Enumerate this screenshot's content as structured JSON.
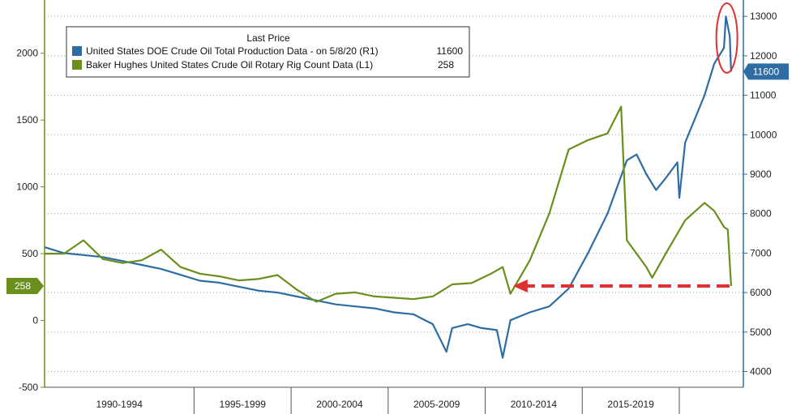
{
  "chart_data": {
    "type": "line",
    "legend": {
      "header": "Last Price",
      "placement": "top-left"
    },
    "series": [
      {
        "name": "United States DOE Crude Oil Total Production Data -  on 5/8/20  (R1)",
        "axis": "right",
        "color": "#2e6da4",
        "last_value": "11600",
        "points": [
          [
            1985.0,
            7150
          ],
          [
            1986.0,
            7000
          ],
          [
            1987.0,
            6950
          ],
          [
            1988.0,
            6900
          ],
          [
            1989.0,
            6800
          ],
          [
            1990.0,
            6700
          ],
          [
            1991.0,
            6600
          ],
          [
            1992.0,
            6450
          ],
          [
            1993.0,
            6300
          ],
          [
            1994.0,
            6250
          ],
          [
            1995.0,
            6150
          ],
          [
            1996.0,
            6050
          ],
          [
            1997.0,
            6000
          ],
          [
            1998.0,
            5900
          ],
          [
            1999.0,
            5800
          ],
          [
            2000.0,
            5700
          ],
          [
            2001.0,
            5650
          ],
          [
            2002.0,
            5600
          ],
          [
            2003.0,
            5500
          ],
          [
            2004.0,
            5450
          ],
          [
            2005.0,
            5200
          ],
          [
            2005.7,
            4500
          ],
          [
            2006.0,
            5100
          ],
          [
            2006.8,
            5200
          ],
          [
            2007.5,
            5100
          ],
          [
            2008.3,
            5050
          ],
          [
            2008.6,
            4350
          ],
          [
            2009.0,
            5300
          ],
          [
            2010.0,
            5500
          ],
          [
            2011.0,
            5650
          ],
          [
            2012.0,
            6100
          ],
          [
            2013.0,
            7000
          ],
          [
            2014.0,
            8000
          ],
          [
            2015.0,
            9350
          ],
          [
            2015.5,
            9500
          ],
          [
            2016.0,
            9000
          ],
          [
            2016.5,
            8600
          ],
          [
            2017.0,
            8900
          ],
          [
            2017.6,
            9300
          ],
          [
            2017.7,
            8400
          ],
          [
            2018.0,
            9800
          ],
          [
            2019.0,
            11000
          ],
          [
            2019.5,
            11800
          ],
          [
            2020.0,
            12200
          ],
          [
            2020.1,
            13000
          ],
          [
            2020.3,
            12500
          ],
          [
            2020.37,
            11600
          ]
        ]
      },
      {
        "name": "Baker Hughes United States Crude Oil Rotary Rig Count Data  (L1)",
        "axis": "left",
        "color": "#6a8f1c",
        "last_value": "258",
        "points": [
          [
            1985.0,
            500
          ],
          [
            1986.0,
            500
          ],
          [
            1987.0,
            600
          ],
          [
            1988.0,
            460
          ],
          [
            1989.0,
            430
          ],
          [
            1990.0,
            450
          ],
          [
            1991.0,
            530
          ],
          [
            1992.0,
            400
          ],
          [
            1993.0,
            350
          ],
          [
            1994.0,
            330
          ],
          [
            1995.0,
            300
          ],
          [
            1996.0,
            310
          ],
          [
            1997.0,
            340
          ],
          [
            1998.0,
            230
          ],
          [
            1999.0,
            140
          ],
          [
            2000.0,
            200
          ],
          [
            2001.0,
            210
          ],
          [
            2002.0,
            180
          ],
          [
            2003.0,
            170
          ],
          [
            2004.0,
            160
          ],
          [
            2005.0,
            180
          ],
          [
            2006.0,
            270
          ],
          [
            2007.0,
            280
          ],
          [
            2008.0,
            350
          ],
          [
            2008.6,
            400
          ],
          [
            2009.0,
            200
          ],
          [
            2010.0,
            450
          ],
          [
            2011.0,
            800
          ],
          [
            2012.0,
            1280
          ],
          [
            2013.0,
            1350
          ],
          [
            2014.0,
            1400
          ],
          [
            2014.7,
            1600
          ],
          [
            2015.0,
            600
          ],
          [
            2016.0,
            400
          ],
          [
            2016.3,
            320
          ],
          [
            2017.0,
            500
          ],
          [
            2018.0,
            750
          ],
          [
            2019.0,
            880
          ],
          [
            2019.5,
            820
          ],
          [
            2020.0,
            700
          ],
          [
            2020.2,
            680
          ],
          [
            2020.37,
            258
          ]
        ]
      }
    ],
    "left_axis": {
      "range": [
        -500,
        2350
      ],
      "ticks": [
        "-500",
        "0",
        "500",
        "1000",
        "1500",
        "2000"
      ],
      "color": "#6a8f1c"
    },
    "right_axis": {
      "range": [
        3600,
        13250
      ],
      "ticks": [
        "4000",
        "5000",
        "6000",
        "7000",
        "8000",
        "9000",
        "10000",
        "11000",
        "12000",
        "13000"
      ],
      "color": "#2e6da4"
    },
    "x_axis": {
      "range": [
        1985,
        2021
      ],
      "era_labels": [
        "1990-1994",
        "1995-1999",
        "2000-2004",
        "2005-2009",
        "2010-2014",
        "2015-2019"
      ],
      "era_boundaries": [
        1992.7,
        1997.7,
        2002.7,
        2007.7,
        2012.7,
        2017.7
      ]
    },
    "annotations": {
      "arrow": {
        "from_year": 2020.37,
        "to_year": 2008.8,
        "at_rig_count": 258,
        "color": "#e03030",
        "style": "dashed"
      },
      "ellipse": {
        "year": 2020.15,
        "range_right": [
          11650,
          13250
        ],
        "color": "#e03030"
      }
    }
  }
}
